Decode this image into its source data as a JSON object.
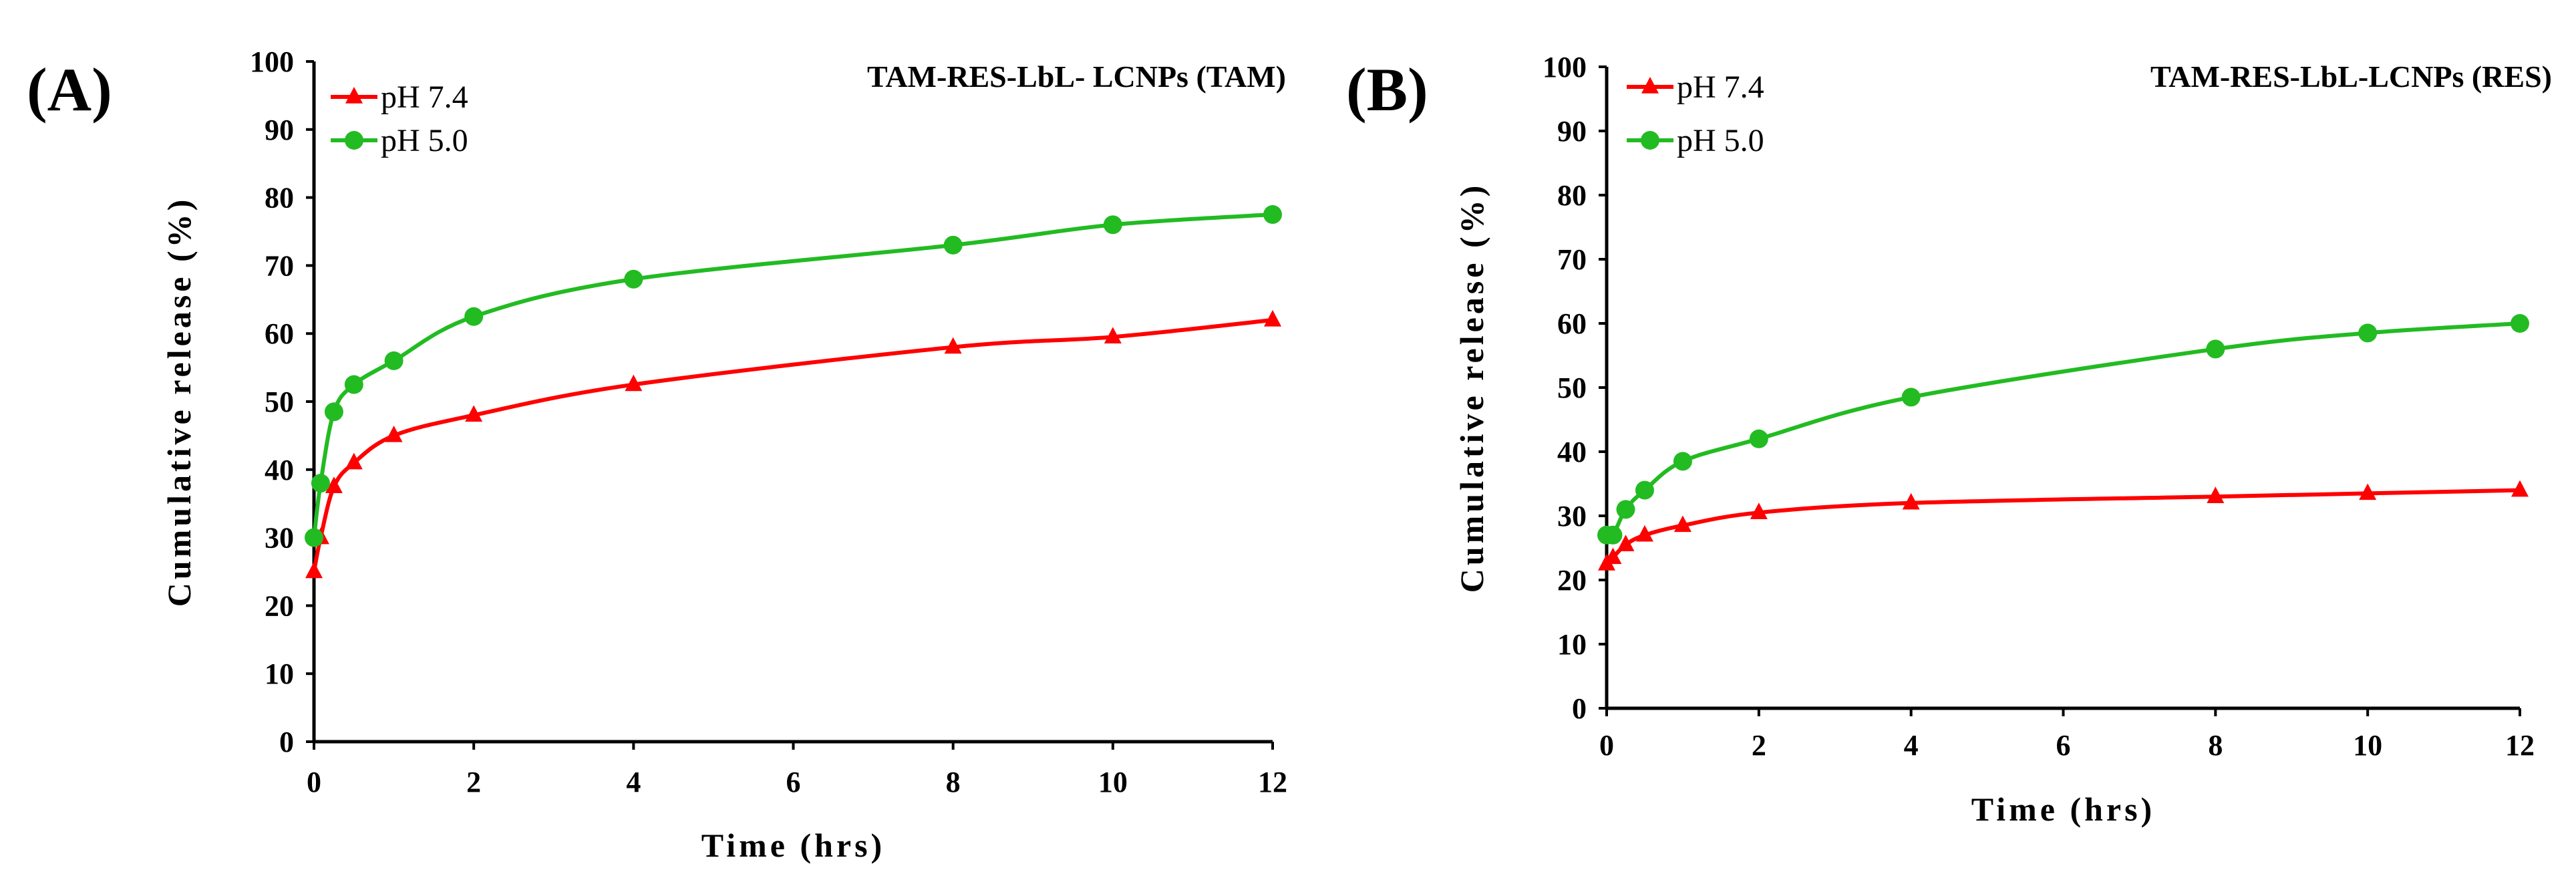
{
  "chart_data": [
    {
      "type": "line",
      "panel_label": "(A)",
      "title": "TAM-RES-LbL- LCNPs (TAM)",
      "xlabel": "Time (hrs)",
      "ylabel": "Cumulative release (%)",
      "xlim": [
        0,
        12
      ],
      "ylim": [
        0,
        100
      ],
      "x_ticks": [
        0,
        2,
        4,
        6,
        8,
        10,
        12
      ],
      "y_ticks": [
        0,
        10,
        20,
        30,
        40,
        50,
        60,
        70,
        80,
        90,
        100
      ],
      "legend_position": "top-left",
      "series": [
        {
          "name": "pH 7.4",
          "color": "#ff0000",
          "marker": "triangle",
          "x": [
            0,
            0.083,
            0.25,
            0.5,
            1,
            2,
            4,
            8,
            10,
            12
          ],
          "values": [
            25,
            30,
            37.5,
            41,
            45,
            48,
            52.5,
            58,
            59.5,
            62
          ]
        },
        {
          "name": "pH 5.0",
          "color": "#22bb22",
          "marker": "circle",
          "x": [
            0,
            0.083,
            0.25,
            0.5,
            1,
            2,
            4,
            8,
            10,
            12
          ],
          "values": [
            30,
            38,
            48.5,
            52.5,
            56,
            62.5,
            68,
            73,
            76,
            77.5
          ]
        }
      ]
    },
    {
      "type": "line",
      "panel_label": "(B)",
      "title": "TAM-RES-LbL-LCNPs (RES)",
      "xlabel": "Time (hrs)",
      "ylabel": "Cumulative release (%)",
      "xlim": [
        0,
        12
      ],
      "ylim": [
        0,
        100
      ],
      "x_ticks": [
        0,
        2,
        4,
        6,
        8,
        10,
        12
      ],
      "y_ticks": [
        0,
        10,
        20,
        30,
        40,
        50,
        60,
        70,
        80,
        90,
        100
      ],
      "legend_position": "top-left",
      "series": [
        {
          "name": "pH 7.4",
          "color": "#ff0000",
          "marker": "triangle",
          "x": [
            0,
            0.083,
            0.25,
            0.5,
            1,
            2,
            4,
            8,
            10,
            12
          ],
          "values": [
            22.5,
            23.5,
            25.5,
            27,
            28.5,
            30.5,
            32,
            33,
            33.5,
            34
          ]
        },
        {
          "name": "pH 5.0",
          "color": "#22bb22",
          "marker": "circle",
          "x": [
            0,
            0.083,
            0.25,
            0.5,
            1,
            2,
            4,
            8,
            10,
            12
          ],
          "values": [
            27,
            27,
            31,
            34,
            38.5,
            42,
            48.5,
            56,
            58.5,
            60
          ]
        }
      ]
    }
  ]
}
